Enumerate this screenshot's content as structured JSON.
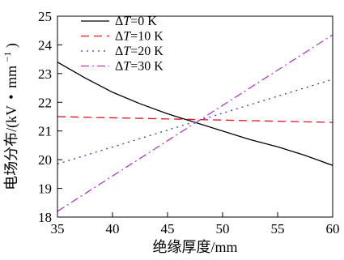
{
  "chart_data": {
    "type": "line",
    "xlabel": "绝缘厚度/mm",
    "ylabel_main": "电场分布/(kV",
    "ylabel_dot": "•",
    "ylabel_unit": "mm",
    "ylabel_sup": "−1",
    "ylabel_close": ")",
    "xlim": [
      35,
      60
    ],
    "ylim": [
      18,
      25
    ],
    "xticks": [
      35,
      40,
      45,
      50,
      55,
      60
    ],
    "yticks": [
      18,
      19,
      20,
      21,
      22,
      23,
      24,
      25
    ],
    "grid": false,
    "legend_position": "top-left",
    "series": [
      {
        "name": "ΔT=0 K",
        "legend_delta": "Δ",
        "legend_var": "T",
        "legend_rest": "=0 K",
        "color": "#000000",
        "dash": "solid",
        "x": [
          35,
          37.5,
          40,
          42.5,
          45,
          47.5,
          50,
          52.5,
          55,
          57.5,
          60
        ],
        "y": [
          23.4,
          22.85,
          22.35,
          21.95,
          21.6,
          21.3,
          21.0,
          20.7,
          20.45,
          20.15,
          19.8
        ]
      },
      {
        "name": "ΔT=10 K",
        "legend_delta": "Δ",
        "legend_var": "T",
        "legend_rest": "=10 K",
        "color": "#e8141b",
        "dash": "dashed",
        "x": [
          35,
          60
        ],
        "y": [
          21.5,
          21.3
        ]
      },
      {
        "name": "ΔT=20 K",
        "legend_delta": "Δ",
        "legend_var": "T",
        "legend_rest": "=20 K",
        "color": "#1f3fd1",
        "dash": "dotted",
        "x": [
          35,
          60
        ],
        "y": [
          19.85,
          22.8
        ]
      },
      {
        "name": "ΔT=30 K",
        "legend_delta": "Δ",
        "legend_var": "T",
        "legend_rest": "=30 K",
        "color": "#b23cc4",
        "dash": "dashdot",
        "x": [
          35,
          60
        ],
        "y": [
          18.2,
          24.35
        ]
      }
    ]
  }
}
